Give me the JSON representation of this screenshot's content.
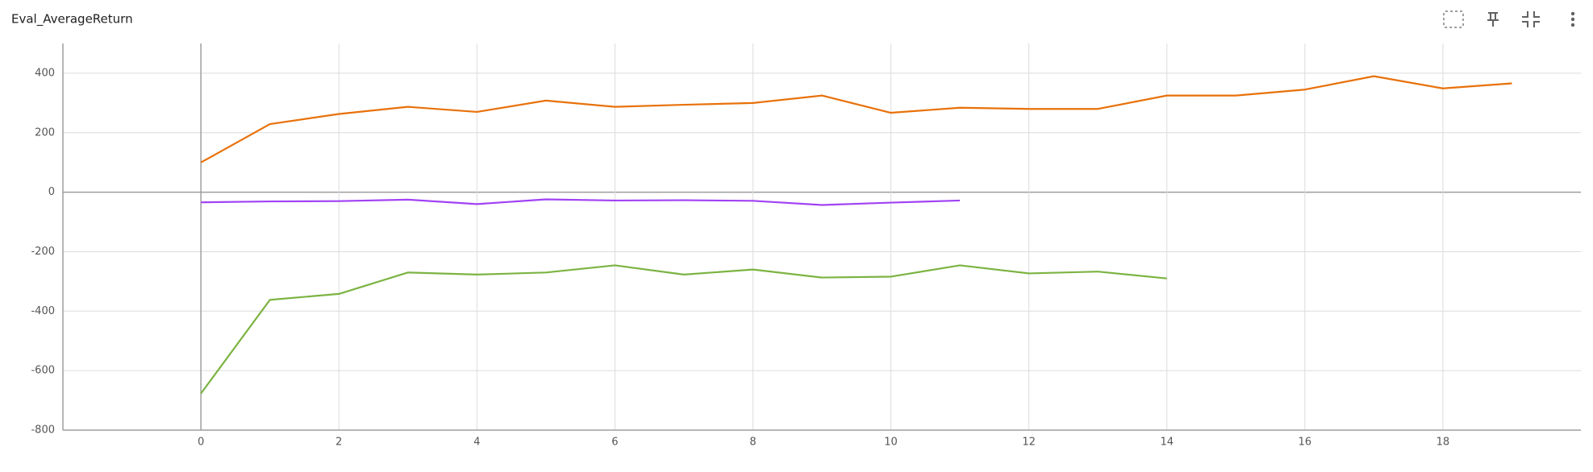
{
  "chart_data": {
    "type": "line",
    "title": "Eval_AverageReturn",
    "x": [
      0,
      1,
      2,
      3,
      4,
      5,
      6,
      7,
      8,
      9,
      10,
      11,
      12,
      13,
      14,
      15,
      16,
      17,
      18,
      19
    ],
    "series": [
      {
        "color": "#e8710a",
        "values": [
          100,
          229,
          263,
          287,
          270,
          308,
          287,
          294,
          300,
          325,
          267,
          284,
          280,
          280,
          325,
          325,
          345,
          390,
          349,
          366
        ]
      },
      {
        "color": "#a142f4",
        "values": [
          -34,
          -31,
          -30,
          -25,
          -40,
          -24,
          -28,
          -27,
          -29,
          -43,
          -35,
          -28,
          null,
          null,
          null,
          null,
          null,
          null,
          null,
          null
        ]
      },
      {
        "color": "#7cb342",
        "values": [
          -677,
          -362,
          -342,
          -270,
          -277,
          -270,
          -246,
          -277,
          -260,
          -287,
          -284,
          -246,
          -273,
          -267,
          -290,
          null,
          null,
          null,
          null,
          null
        ]
      }
    ],
    "xlim": [
      -2,
      20
    ],
    "xticks": [
      0,
      2,
      4,
      6,
      8,
      10,
      12,
      14,
      16,
      18
    ],
    "ylim": [
      -800,
      500
    ],
    "yticks": [
      -800,
      -600,
      -400,
      -200,
      0,
      200,
      400
    ],
    "grid": true
  }
}
